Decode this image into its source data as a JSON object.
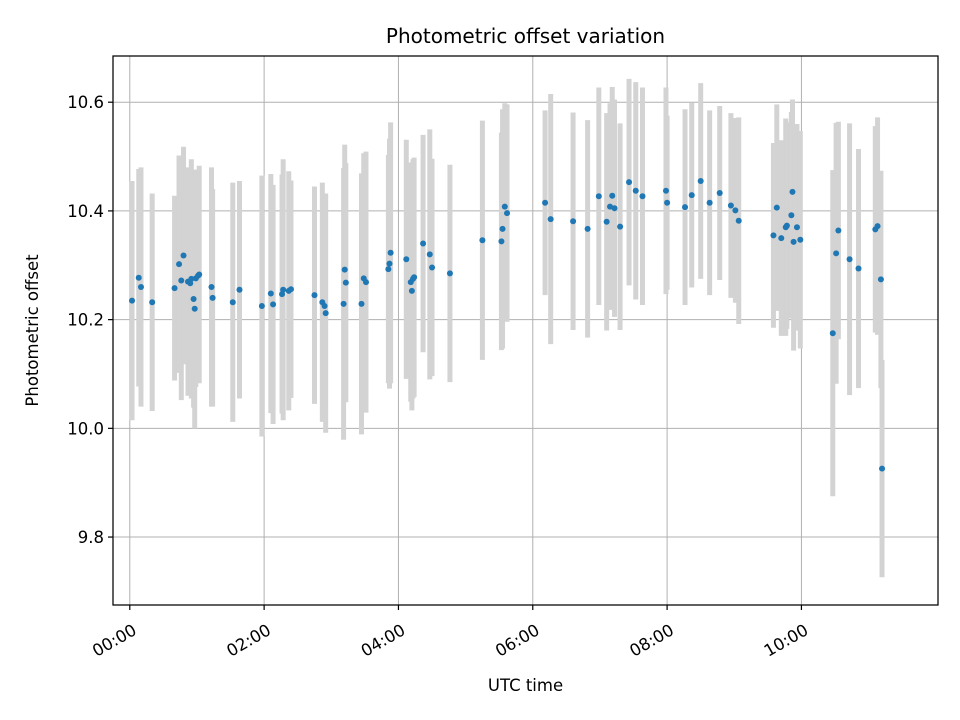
{
  "chart_data": {
    "type": "scatter",
    "title": "Photometric offset variation",
    "xlabel": "UTC time",
    "ylabel": "Photometric offset",
    "xlim": [
      "23:45",
      "12:02"
    ],
    "ylim": [
      9.675,
      10.685
    ],
    "grid": true,
    "x_ticks": [
      "00:00",
      "02:00",
      "04:00",
      "06:00",
      "08:00",
      "10:00"
    ],
    "y_ticks": [
      9.8,
      10.0,
      10.2,
      10.4,
      10.6
    ],
    "colors": {
      "point": "#1f77b4",
      "errorbar": "#d3d3d3",
      "grid": "#b0b0b0"
    },
    "series": [
      {
        "x": [
          "00:02",
          "00:08",
          "00:10",
          "00:20",
          "00:40",
          "00:44",
          "00:46",
          "00:48",
          "00:52",
          "00:54",
          "00:55",
          "00:57",
          "00:58",
          "00:59",
          "01:01",
          "01:02",
          "01:13",
          "01:14",
          "01:32",
          "01:38",
          "01:58",
          "02:06",
          "02:08",
          "02:16",
          "02:17",
          "02:22",
          "02:24",
          "02:45",
          "02:52",
          "02:54",
          "02:55",
          "03:11",
          "03:12",
          "03:13",
          "03:27",
          "03:29",
          "03:31",
          "03:51",
          "03:52",
          "03:53",
          "04:07",
          "04:11",
          "04:12",
          "04:13",
          "04:14",
          "04:22",
          "04:28",
          "04:30",
          "04:46",
          "05:15",
          "05:32",
          "05:33",
          "05:35",
          "05:37",
          "06:11",
          "06:16",
          "06:36",
          "06:49",
          "06:59",
          "07:06",
          "07:09",
          "07:11",
          "07:13",
          "07:18",
          "07:26",
          "07:32",
          "07:38",
          "07:59",
          "08:00",
          "08:16",
          "08:22",
          "08:30",
          "08:38",
          "08:47",
          "08:57",
          "09:01",
          "09:04",
          "09:35",
          "09:38",
          "09:42",
          "09:46",
          "09:47",
          "09:51",
          "09:52",
          "09:53",
          "09:56",
          "09:59",
          "10:28",
          "10:31",
          "10:33",
          "10:43",
          "10:51",
          "11:06",
          "11:08",
          "11:11",
          "11:12"
        ],
        "y": [
          10.235,
          10.277,
          10.26,
          10.232,
          10.258,
          10.302,
          10.272,
          10.318,
          10.27,
          10.267,
          10.275,
          10.238,
          10.22,
          10.276,
          10.281,
          10.283,
          10.26,
          10.24,
          10.232,
          10.255,
          10.225,
          10.248,
          10.228,
          10.247,
          10.255,
          10.253,
          10.256,
          10.245,
          10.232,
          10.225,
          10.212,
          10.229,
          10.292,
          10.268,
          10.229,
          10.276,
          10.269,
          10.293,
          10.303,
          10.323,
          10.311,
          10.269,
          10.253,
          10.275,
          10.278,
          10.34,
          10.32,
          10.296,
          10.285,
          10.346,
          10.344,
          10.367,
          10.408,
          10.396,
          10.415,
          10.385,
          10.381,
          10.367,
          10.427,
          10.38,
          10.408,
          10.428,
          10.405,
          10.371,
          10.453,
          10.437,
          10.427,
          10.437,
          10.415,
          10.407,
          10.429,
          10.455,
          10.415,
          10.433,
          10.41,
          10.401,
          10.382,
          10.355,
          10.406,
          10.35,
          10.37,
          10.373,
          10.392,
          10.435,
          10.343,
          10.37,
          10.347,
          10.175,
          10.322,
          10.364,
          10.311,
          10.294,
          10.366,
          10.372,
          10.274,
          9.926
        ],
        "err": [
          0.22,
          0.2,
          0.22,
          0.2,
          0.17,
          0.2,
          0.22,
          0.2,
          0.21,
          0.2,
          0.22,
          0.2,
          0.22,
          0.2,
          0.18,
          0.2,
          0.22,
          0.2,
          0.22,
          0.2,
          0.24,
          0.22,
          0.22,
          0.22,
          0.24,
          0.22,
          0.2,
          0.2,
          0.22,
          0.2,
          0.22,
          0.25,
          0.23,
          0.22,
          0.24,
          0.23,
          0.24,
          0.21,
          0.23,
          0.24,
          0.22,
          0.22,
          0.22,
          0.22,
          0.22,
          0.2,
          0.23,
          0.2,
          0.2,
          0.22,
          0.2,
          0.22,
          0.19,
          0.2,
          0.17,
          0.23,
          0.2,
          0.2,
          0.2,
          0.2,
          0.19,
          0.2,
          0.2,
          0.19,
          0.19,
          0.2,
          0.2,
          0.19,
          0.16,
          0.18,
          0.17,
          0.18,
          0.17,
          0.16,
          0.17,
          0.17,
          0.19,
          0.17,
          0.19,
          0.18,
          0.2,
          0.19,
          0.19,
          0.17,
          0.2,
          0.19,
          0.2,
          0.3,
          0.24,
          0.2,
          0.25,
          0.22,
          0.19,
          0.2,
          0.2,
          0.2
        ]
      }
    ]
  }
}
